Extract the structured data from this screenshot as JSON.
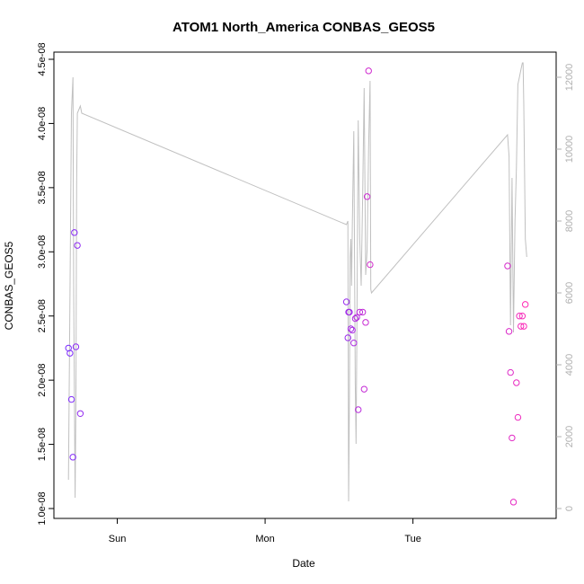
{
  "chart_data": {
    "type": "scatter",
    "title": "ATOM1 North_America CONBAS_GEOS5",
    "xlabel": "Date",
    "ylabel": "CONBAS_GEOS5",
    "x_ticks": [
      "Sun",
      "Mon",
      "Tue"
    ],
    "x_tick_days": [
      1,
      2,
      3
    ],
    "xlim_days": [
      0.62,
      3.92
    ],
    "ylim": [
      1e-08,
      4.5e-08
    ],
    "y_ticks": [
      "1.0e-08",
      "1.5e-08",
      "2.0e-08",
      "2.5e-08",
      "3.0e-08",
      "3.5e-08",
      "4.0e-08",
      "4.5e-08"
    ],
    "y_tick_values": [
      1e-08,
      1.5e-08,
      2e-08,
      2.5e-08,
      3e-08,
      3.5e-08,
      4e-08,
      4.5e-08
    ],
    "y2lim": [
      0,
      12500
    ],
    "y2_ticks": [
      "0",
      "2000",
      "4000",
      "6000",
      "8000",
      "10000",
      "12000"
    ],
    "y2_tick_values": [
      0,
      2000,
      4000,
      6000,
      8000,
      10000,
      12000
    ],
    "grid": false,
    "colors": {
      "line": "#c0c0c0",
      "points_start": "#7a2cff",
      "points_end": "#ff2ab4",
      "right_axis": "#b0b0b0"
    },
    "series": [
      {
        "role": "points",
        "x_days": [
          0.67,
          0.68,
          0.69,
          0.7,
          0.71,
          0.72,
          0.73,
          0.75,
          2.55,
          2.56,
          2.565,
          2.57,
          2.58,
          2.59,
          2.6,
          2.61,
          2.62,
          2.63,
          2.64,
          2.66,
          2.67,
          2.68,
          2.69,
          2.7,
          2.71,
          3.64,
          3.65,
          3.66,
          3.67,
          3.68,
          3.7,
          3.71,
          3.72,
          3.73,
          3.74,
          3.75,
          3.76
        ],
        "y": [
          2.25e-08,
          2.21e-08,
          1.85e-08,
          1.4e-08,
          3.15e-08,
          2.26e-08,
          3.05e-08,
          1.74e-08,
          2.61e-08,
          2.33e-08,
          2.53e-08,
          2.53e-08,
          2.4e-08,
          2.39e-08,
          2.29e-08,
          2.48e-08,
          2.49e-08,
          1.77e-08,
          2.53e-08,
          2.53e-08,
          1.93e-08,
          2.45e-08,
          3.43e-08,
          4.41e-08,
          2.9e-08,
          2.89e-08,
          2.38e-08,
          2.06e-08,
          1.55e-08,
          1.05e-08,
          1.98e-08,
          1.71e-08,
          2.5e-08,
          2.42e-08,
          2.5e-08,
          2.42e-08,
          2.59e-08
        ]
      },
      {
        "role": "line",
        "axis": "right",
        "x_days": [
          0.67,
          0.68,
          0.69,
          0.7,
          0.705,
          0.715,
          0.72,
          0.725,
          0.73,
          0.75,
          0.76,
          2.55,
          2.56,
          2.565,
          2.57,
          2.575,
          2.58,
          2.585,
          2.59,
          2.6,
          2.61,
          2.615,
          2.62,
          2.63,
          2.64,
          2.65,
          2.66,
          2.67,
          2.68,
          2.69,
          2.7,
          2.71,
          2.715,
          2.72,
          3.64,
          3.65,
          3.66,
          3.67,
          3.68,
          3.69,
          3.7,
          3.71,
          3.72,
          3.73,
          3.74,
          3.745,
          3.75,
          3.76,
          3.77
        ],
        "y": [
          800,
          6000,
          11000,
          12000,
          6000,
          300,
          3000,
          9000,
          11000,
          11200,
          11000,
          7900,
          8000,
          200,
          3000,
          7000,
          7500,
          6200,
          8000,
          10500,
          3500,
          1800,
          4500,
          10800,
          7500,
          6200,
          8800,
          11700,
          6500,
          7200,
          10100,
          11900,
          6100,
          6000,
          10400,
          9800,
          5100,
          9200,
          4900,
          8000,
          9500,
          11800,
          12000,
          12200,
          12400,
          12400,
          11200,
          7500,
          7000
        ]
      }
    ]
  }
}
